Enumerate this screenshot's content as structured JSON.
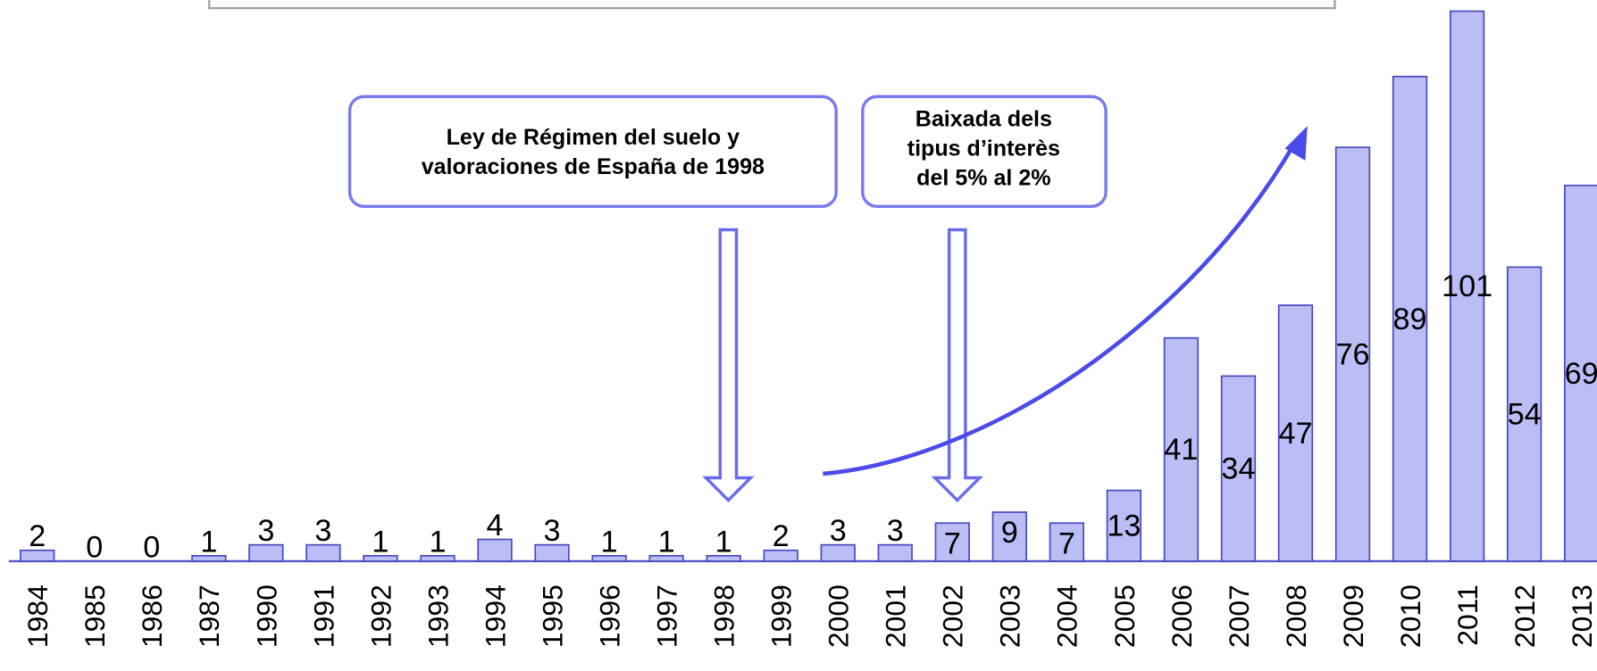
{
  "chart_data": {
    "type": "bar",
    "categories": [
      "1984",
      "1985",
      "1986",
      "1987",
      "1990",
      "1991",
      "1992",
      "1993",
      "1994",
      "1995",
      "1996",
      "1997",
      "1998",
      "1999",
      "2000",
      "2001",
      "2002",
      "2003",
      "2004",
      "2005",
      "2006",
      "2007",
      "2008",
      "2009",
      "2010",
      "2011",
      "2012",
      "2013"
    ],
    "values": [
      2,
      0,
      0,
      1,
      3,
      3,
      1,
      1,
      4,
      3,
      1,
      1,
      1,
      2,
      3,
      3,
      7,
      9,
      7,
      13,
      41,
      34,
      47,
      76,
      89,
      101,
      54,
      69
    ],
    "color": "#bbbdf6",
    "annotations": [
      {
        "lines": [
          "Ley de Régimen del suelo y",
          "valoraciones de España de 1998"
        ]
      },
      {
        "lines": [
          "Baixada dels",
          "tipus d’interès",
          "del 5% al 2%"
        ]
      }
    ]
  }
}
